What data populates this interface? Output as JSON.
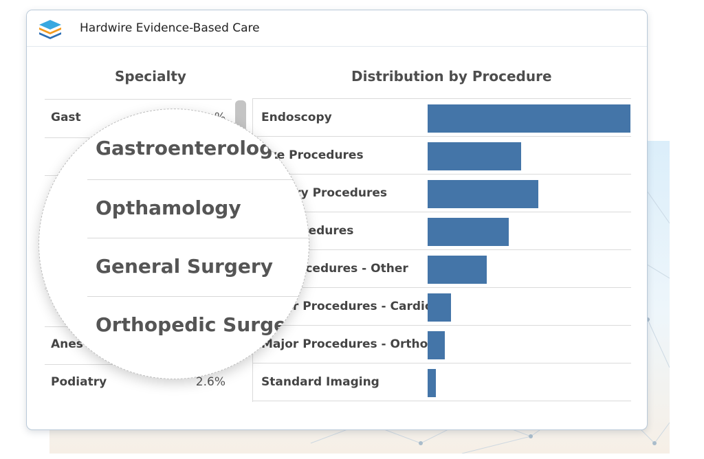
{
  "window": {
    "title": "Hardwire Evidence-Based Care",
    "logo_icon": "stacked-layers-logo-icon"
  },
  "specialty": {
    "heading": "Specialty",
    "rows": [
      {
        "name": "Gast",
        "pct": "%"
      },
      {
        "name": "",
        "pct": ""
      },
      {
        "name": "",
        "pct": ""
      },
      {
        "name": "",
        "pct": ""
      },
      {
        "name": "",
        "pct": ""
      },
      {
        "name": "",
        "pct": ""
      },
      {
        "name": "Anes",
        "pct": "%"
      },
      {
        "name": "Podiatry",
        "pct": "2.6%"
      }
    ]
  },
  "magnifier": {
    "items": [
      "Gastroenterology",
      "Opthamology",
      "General Surgery",
      "Orthopedic Surgery"
    ]
  },
  "distribution": {
    "heading": "Distribution by Procedure",
    "bar_color": "#4475a8",
    "max_value": 1.0,
    "procedures": [
      {
        "label": "Endoscopy",
        "value": 1.0
      },
      {
        "label": "Eye Procedures",
        "value": 0.46
      },
      {
        "label": "ulatory Procedures",
        "value": 0.545
      },
      {
        "label": "or Procedures",
        "value": 0.4
      },
      {
        "label": "jor Procedures - Other",
        "value": 0.29
      },
      {
        "label": "Major Procedures - Cardio",
        "value": 0.115
      },
      {
        "label": "Major Procedures - Ortho",
        "value": 0.085
      },
      {
        "label": "Standard Imaging",
        "value": 0.04
      }
    ]
  }
}
